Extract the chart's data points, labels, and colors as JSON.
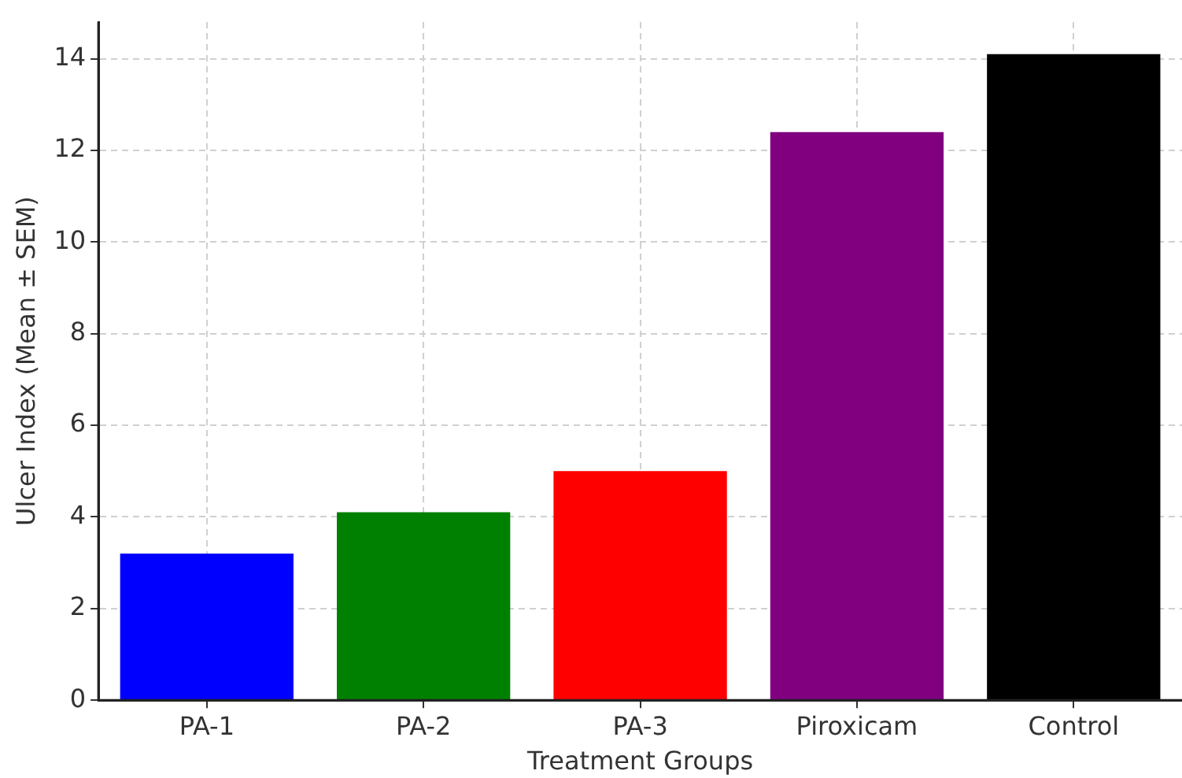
{
  "chart_data": {
    "type": "bar",
    "xlabel": "Treatment Groups",
    "ylabel": "Ulcer Index (Mean ± SEM)",
    "categories": [
      "PA-1",
      "PA-2",
      "PA-3",
      "Piroxicam",
      "Control"
    ],
    "values": [
      3.2,
      4.1,
      5.0,
      12.4,
      14.1
    ],
    "colors": [
      "#0000ff",
      "#008000",
      "#ff0000",
      "#800080",
      "#000000"
    ],
    "ylim": [
      0,
      14.8
    ],
    "yticks": [
      0,
      2,
      4,
      6,
      8,
      10,
      12,
      14
    ],
    "grid": true
  }
}
